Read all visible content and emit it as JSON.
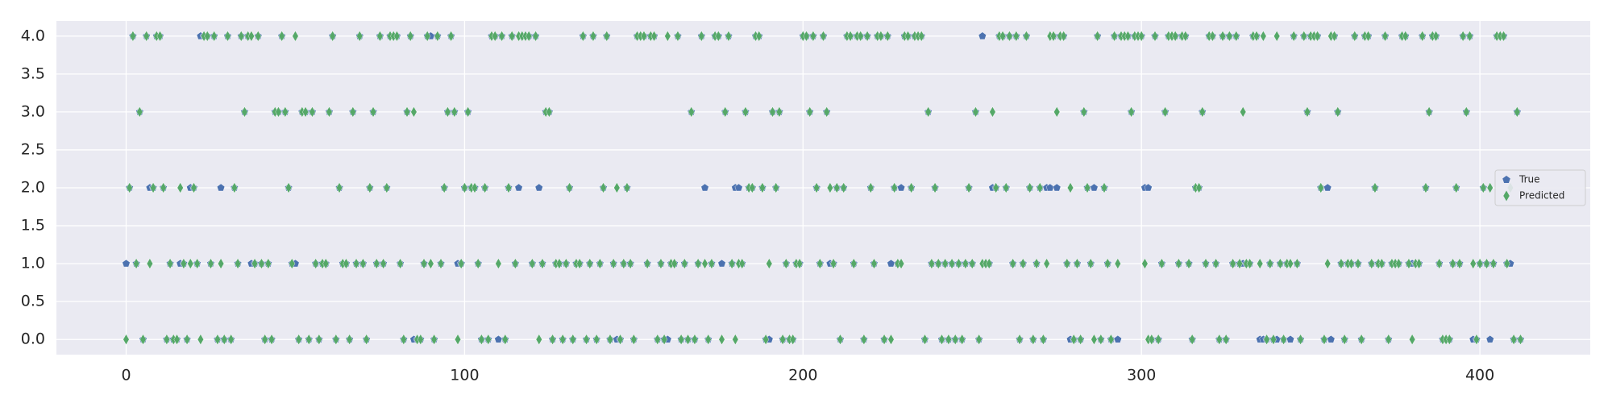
{
  "chart_data": {
    "type": "scatter",
    "x": [
      0,
      1,
      2,
      3,
      4,
      5,
      6,
      7,
      8,
      9,
      10,
      11,
      12,
      13,
      14,
      15,
      16,
      17,
      18,
      19,
      20,
      21,
      22,
      23,
      24,
      25,
      26,
      27,
      28,
      29,
      30,
      31,
      32,
      33,
      34,
      35,
      36,
      37,
      38,
      39,
      40,
      41,
      42,
      43,
      44,
      45,
      46,
      47,
      48,
      49,
      50,
      51,
      52,
      53,
      54,
      55,
      56,
      57,
      58,
      59,
      60,
      61,
      62,
      63,
      64,
      65,
      66,
      67,
      68,
      69,
      70,
      71,
      72,
      73,
      74,
      75,
      76,
      77,
      78,
      79,
      80,
      81,
      82,
      83,
      84,
      85,
      86,
      87,
      88,
      89,
      90,
      91,
      92,
      93,
      94,
      95,
      96,
      97,
      98,
      99,
      100,
      101,
      102,
      103,
      104,
      105,
      106,
      107,
      108,
      109,
      110,
      111,
      112,
      113,
      114,
      115,
      116,
      117,
      118,
      119,
      120,
      121,
      122,
      123,
      124,
      125,
      126,
      127,
      128,
      129,
      130,
      131,
      132,
      133,
      134,
      135,
      136,
      137,
      138,
      139,
      140,
      141,
      142,
      143,
      144,
      145,
      146,
      147,
      148,
      149,
      150,
      151,
      152,
      153,
      154,
      155,
      156,
      157,
      158,
      159,
      160,
      161,
      162,
      163,
      164,
      165,
      166,
      167,
      168,
      169,
      170,
      171,
      172,
      173,
      174,
      175,
      176,
      177,
      178,
      179,
      180,
      181,
      182,
      183,
      184,
      185,
      186,
      187,
      188,
      189,
      190,
      191,
      192,
      193,
      194,
      195,
      196,
      197,
      198,
      199,
      200,
      201,
      202,
      203,
      204,
      205,
      206,
      207,
      208,
      209,
      210,
      211,
      212,
      213,
      214,
      215,
      216,
      217,
      218,
      219,
      220,
      221,
      222,
      223,
      224,
      225,
      226,
      227,
      228,
      229,
      230,
      231,
      232,
      233,
      234,
      235,
      236,
      237,
      238,
      239,
      240,
      241,
      242,
      243,
      244,
      245,
      246,
      247,
      248,
      249,
      250,
      251,
      252,
      253,
      254,
      255,
      256,
      257,
      258,
      259,
      260,
      261,
      262,
      263,
      264,
      265,
      266,
      267,
      268,
      269,
      270,
      271,
      272,
      273,
      274,
      275,
      276,
      277,
      278,
      279,
      280,
      281,
      282,
      283,
      284,
      285,
      286,
      287,
      288,
      289,
      290,
      291,
      292,
      293,
      294,
      295,
      296,
      297,
      298,
      299,
      300,
      301,
      302,
      303,
      304,
      305,
      306,
      307,
      308,
      309,
      310,
      311,
      312,
      313,
      314,
      315,
      316,
      317,
      318,
      319,
      320,
      321,
      322,
      323,
      324,
      325,
      326,
      327,
      328,
      329,
      330,
      331,
      332,
      333,
      334,
      335,
      336,
      337,
      338,
      339,
      340,
      341,
      342,
      343,
      344,
      345,
      346,
      347,
      348,
      349,
      350,
      351,
      352,
      353,
      354,
      355,
      356,
      357,
      358,
      359,
      360,
      361,
      362,
      363,
      364,
      365,
      366,
      367,
      368,
      369,
      370,
      371,
      372,
      373,
      374,
      375,
      376,
      377,
      378,
      379,
      380,
      381,
      382,
      383,
      384,
      385,
      386,
      387,
      388,
      389,
      390,
      391,
      392,
      393,
      394,
      395,
      396,
      397,
      398,
      399,
      400,
      401,
      402,
      403,
      404,
      405,
      406,
      407,
      408,
      409,
      410,
      411,
      412
    ],
    "series": [
      {
        "name": "True",
        "color": "#4c72b0",
        "marker": "pentagon",
        "values": [
          1,
          2,
          4,
          1,
          3,
          0,
          4,
          2,
          2,
          4,
          4,
          2,
          0,
          1,
          0,
          0,
          1,
          1,
          0,
          2,
          2,
          1,
          4,
          4,
          4,
          1,
          4,
          0,
          2,
          0,
          4,
          0,
          2,
          1,
          4,
          3,
          4,
          1,
          1,
          4,
          1,
          0,
          1,
          0,
          3,
          3,
          4,
          3,
          2,
          1,
          1,
          0,
          3,
          3,
          0,
          3,
          1,
          0,
          1,
          1,
          3,
          4,
          0,
          2,
          1,
          1,
          0,
          3,
          1,
          4,
          1,
          0,
          2,
          3,
          1,
          4,
          1,
          2,
          4,
          4,
          4,
          1,
          0,
          3,
          4,
          0,
          0,
          0,
          1,
          4,
          4,
          0,
          4,
          1,
          2,
          3,
          4,
          3,
          1,
          1,
          2,
          3,
          2,
          2,
          1,
          0,
          2,
          0,
          4,
          4,
          0,
          4,
          0,
          2,
          4,
          1,
          2,
          4,
          4,
          4,
          1,
          4,
          2,
          1,
          3,
          3,
          0,
          1,
          1,
          0,
          1,
          2,
          0,
          1,
          1,
          4,
          0,
          1,
          4,
          0,
          1,
          2,
          4,
          0,
          1,
          0,
          0,
          1,
          2,
          1,
          0,
          4,
          4,
          4,
          1,
          4,
          4,
          0,
          1,
          0,
          0,
          1,
          1,
          4,
          0,
          1,
          0,
          3,
          0,
          1,
          4,
          2,
          0,
          1,
          4,
          4,
          1,
          3,
          4,
          1,
          2,
          2,
          1,
          3,
          2,
          2,
          4,
          4,
          2,
          0,
          0,
          3,
          2,
          3,
          0,
          1,
          0,
          0,
          1,
          1,
          4,
          4,
          3,
          4,
          2,
          1,
          4,
          3,
          1,
          1,
          2,
          0,
          2,
          4,
          4,
          1,
          4,
          4,
          0,
          4,
          2,
          1,
          4,
          4,
          0,
          4,
          1,
          2,
          1,
          2,
          4,
          4,
          2,
          4,
          4,
          4,
          0,
          3,
          1,
          2,
          1,
          0,
          1,
          0,
          1,
          0,
          1,
          0,
          1,
          2,
          1,
          3,
          0,
          4,
          1,
          1,
          2,
          2,
          4,
          4,
          2,
          4,
          1,
          4,
          0,
          1,
          4,
          2,
          0,
          1,
          2,
          0,
          2,
          2,
          4,
          2,
          4,
          4,
          1,
          0,
          0,
          1,
          0,
          3,
          2,
          1,
          2,
          4,
          0,
          2,
          1,
          0,
          4,
          0,
          4,
          4,
          4,
          3,
          4,
          4,
          4,
          2,
          2,
          0,
          4,
          0,
          1,
          3,
          4,
          4,
          4,
          1,
          4,
          4,
          1,
          0,
          2,
          2,
          3,
          1,
          4,
          4,
          1,
          0,
          4,
          0,
          4,
          1,
          4,
          1,
          1,
          1,
          1,
          4,
          4,
          0,
          0,
          0,
          1,
          0,
          0,
          1,
          0,
          1,
          0,
          4,
          1,
          0,
          4,
          3,
          4,
          4,
          4,
          2,
          0,
          2,
          0,
          4,
          3,
          1,
          0,
          1,
          1,
          4,
          1,
          0,
          4,
          4,
          1,
          2,
          1,
          1,
          4,
          0,
          1,
          1,
          1,
          4,
          4,
          1,
          1,
          1,
          1,
          4,
          2,
          3,
          4,
          4,
          1,
          0,
          0,
          0,
          1,
          2,
          1,
          4,
          3,
          4,
          0,
          0,
          1,
          2,
          1,
          0,
          1,
          4,
          4,
          4,
          1,
          1,
          0,
          3,
          0
        ]
      },
      {
        "name": "Predicted",
        "color": "#55a868",
        "marker": "diamond",
        "values": [
          0,
          2,
          4,
          1,
          3,
          0,
          4,
          1,
          2,
          4,
          4,
          2,
          0,
          1,
          0,
          0,
          2,
          1,
          0,
          1,
          2,
          1,
          0,
          4,
          4,
          1,
          4,
          0,
          1,
          0,
          4,
          0,
          2,
          1,
          4,
          3,
          4,
          4,
          1,
          4,
          1,
          0,
          1,
          0,
          3,
          3,
          4,
          3,
          2,
          1,
          4,
          0,
          3,
          3,
          0,
          3,
          1,
          0,
          1,
          1,
          3,
          4,
          0,
          2,
          1,
          1,
          0,
          3,
          1,
          4,
          1,
          0,
          2,
          3,
          1,
          4,
          1,
          2,
          4,
          4,
          4,
          1,
          0,
          3,
          4,
          3,
          0,
          0,
          1,
          4,
          1,
          0,
          4,
          1,
          2,
          3,
          4,
          3,
          0,
          1,
          2,
          3,
          2,
          2,
          1,
          0,
          2,
          0,
          4,
          4,
          1,
          4,
          0,
          2,
          4,
          1,
          4,
          4,
          4,
          4,
          1,
          4,
          0,
          1,
          3,
          3,
          0,
          1,
          1,
          0,
          1,
          2,
          0,
          1,
          1,
          4,
          0,
          1,
          4,
          0,
          1,
          2,
          4,
          0,
          1,
          2,
          0,
          1,
          2,
          1,
          0,
          4,
          4,
          4,
          1,
          4,
          4,
          0,
          1,
          0,
          4,
          1,
          1,
          4,
          0,
          1,
          0,
          3,
          0,
          1,
          4,
          1,
          0,
          1,
          4,
          4,
          0,
          3,
          4,
          1,
          0,
          1,
          1,
          3,
          2,
          2,
          4,
          4,
          2,
          0,
          1,
          3,
          2,
          3,
          0,
          1,
          0,
          0,
          1,
          1,
          4,
          4,
          3,
          4,
          2,
          1,
          4,
          3,
          2,
          1,
          2,
          0,
          2,
          4,
          4,
          1,
          4,
          4,
          0,
          4,
          2,
          1,
          4,
          4,
          0,
          4,
          0,
          2,
          1,
          1,
          4,
          4,
          2,
          4,
          4,
          4,
          0,
          3,
          1,
          2,
          1,
          0,
          1,
          0,
          1,
          0,
          1,
          0,
          1,
          2,
          1,
          3,
          0,
          1,
          1,
          1,
          3,
          2,
          4,
          4,
          2,
          4,
          1,
          4,
          0,
          1,
          4,
          2,
          0,
          1,
          2,
          0,
          1,
          4,
          4,
          3,
          4,
          4,
          1,
          2,
          0,
          1,
          0,
          3,
          2,
          1,
          0,
          4,
          0,
          2,
          1,
          0,
          4,
          1,
          4,
          4,
          4,
          3,
          4,
          4,
          4,
          1,
          0,
          0,
          4,
          0,
          1,
          3,
          4,
          4,
          4,
          1,
          4,
          4,
          1,
          0,
          2,
          2,
          3,
          1,
          4,
          4,
          1,
          0,
          4,
          0,
          4,
          1,
          4,
          1,
          3,
          1,
          1,
          4,
          4,
          1,
          4,
          0,
          1,
          0,
          4,
          1,
          0,
          1,
          1,
          4,
          1,
          0,
          4,
          3,
          4,
          4,
          4,
          2,
          0,
          1,
          4,
          4,
          3,
          1,
          0,
          1,
          1,
          4,
          1,
          0,
          4,
          4,
          1,
          2,
          1,
          1,
          4,
          0,
          1,
          1,
          1,
          4,
          4,
          1,
          0,
          1,
          1,
          4,
          2,
          3,
          4,
          4,
          1,
          0,
          0,
          0,
          1,
          2,
          1,
          4,
          3,
          4,
          1,
          0,
          1,
          2,
          1,
          2,
          1,
          4,
          4,
          4,
          1,
          2,
          0,
          3,
          0
        ]
      }
    ],
    "xlim": [
      -20.6,
      432.6
    ],
    "ylim": [
      -0.2,
      4.2
    ],
    "xticks": [
      0,
      100,
      200,
      300,
      400
    ],
    "yticks": [
      {
        "value": 0,
        "label": "0.0"
      },
      {
        "value": 0.5,
        "label": "0.5"
      },
      {
        "value": 1,
        "label": "1.0"
      },
      {
        "value": 1.5,
        "label": "1.5"
      },
      {
        "value": 2,
        "label": "2.0"
      },
      {
        "value": 2.5,
        "label": "2.5"
      },
      {
        "value": 3,
        "label": "3.0"
      },
      {
        "value": 3.5,
        "label": "3.5"
      },
      {
        "value": 4,
        "label": "4.0"
      }
    ],
    "grid": true,
    "legend": "center right"
  }
}
